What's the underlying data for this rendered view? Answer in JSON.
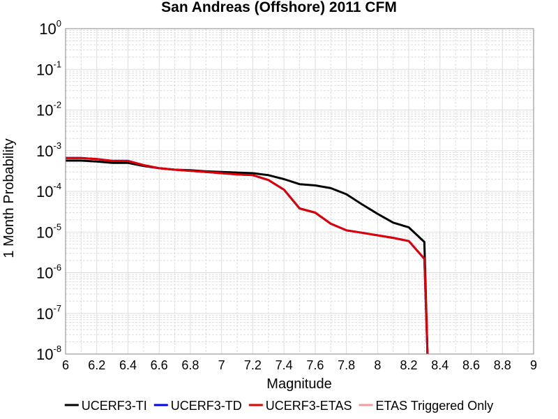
{
  "chart_data": {
    "type": "line",
    "title": "San Andreas (Offshore) 2011 CFM",
    "xlabel": "Magnitude",
    "ylabel": "1 Month Probability",
    "xlim": [
      6,
      9
    ],
    "ylim": [
      1e-08,
      1
    ],
    "yscale": "log",
    "grid": true,
    "legend_position": "bottom",
    "x_ticks": [
      "6",
      "6.2",
      "6.4",
      "6.6",
      "6.8",
      "7",
      "7.2",
      "7.4",
      "7.6",
      "7.8",
      "8",
      "8.2",
      "8.4",
      "8.6",
      "8.8",
      "9"
    ],
    "y_ticks": [
      {
        "base": "10",
        "exp": "0"
      },
      {
        "base": "10",
        "exp": "-1"
      },
      {
        "base": "10",
        "exp": "-2"
      },
      {
        "base": "10",
        "exp": "-3"
      },
      {
        "base": "10",
        "exp": "-4"
      },
      {
        "base": "10",
        "exp": "-5"
      },
      {
        "base": "10",
        "exp": "-6"
      },
      {
        "base": "10",
        "exp": "-7"
      },
      {
        "base": "10",
        "exp": "-8"
      }
    ],
    "series": [
      {
        "name": "UCERF3-TI",
        "color": "#000000",
        "x": [
          6.0,
          6.1,
          6.2,
          6.3,
          6.4,
          6.5,
          6.6,
          6.7,
          6.8,
          6.9,
          7.0,
          7.1,
          7.2,
          7.3,
          7.4,
          7.5,
          7.6,
          7.7,
          7.8,
          7.9,
          8.0,
          8.1,
          8.2,
          8.3,
          8.32
        ],
        "y": [
          0.00057,
          0.00057,
          0.00054,
          0.0005,
          0.0005,
          0.00042,
          0.00037,
          0.00034,
          0.00033,
          0.00031,
          0.0003,
          0.00029,
          0.00028,
          0.00025,
          0.0002,
          0.00015,
          0.00014,
          0.00012,
          8.5e-05,
          4.8e-05,
          2.8e-05,
          1.7e-05,
          1.3e-05,
          5.7e-06,
          1e-08
        ]
      },
      {
        "name": "UCERF3-TD",
        "color": "#0000ff",
        "x": [
          6.0,
          6.1,
          6.2,
          6.3,
          6.4,
          6.5,
          6.6,
          6.7,
          6.8,
          6.9,
          7.0,
          7.1,
          7.2,
          7.3,
          7.4,
          7.5,
          7.6,
          7.7,
          7.8,
          7.9,
          8.0,
          8.1,
          8.2,
          8.3,
          8.32
        ],
        "y": [
          0.00066,
          0.00066,
          0.00062,
          0.00056,
          0.00056,
          0.00044,
          0.00037,
          0.00034,
          0.00032,
          0.0003,
          0.00028,
          0.00026,
          0.00025,
          0.00019,
          0.00011,
          3.8e-05,
          3e-05,
          1.6e-05,
          1.1e-05,
          9.6e-06,
          8.3e-06,
          7.2e-06,
          6e-06,
          2.2e-06,
          1e-08
        ]
      },
      {
        "name": "UCERF3-ETAS",
        "color": "#e00000",
        "x": [
          6.0,
          6.1,
          6.2,
          6.3,
          6.4,
          6.5,
          6.6,
          6.7,
          6.8,
          6.9,
          7.0,
          7.1,
          7.2,
          7.3,
          7.4,
          7.5,
          7.6,
          7.7,
          7.8,
          7.9,
          8.0,
          8.1,
          8.2,
          8.3,
          8.32
        ],
        "y": [
          0.00066,
          0.00066,
          0.00062,
          0.00056,
          0.00056,
          0.00044,
          0.00037,
          0.00034,
          0.00032,
          0.0003,
          0.00028,
          0.00026,
          0.00025,
          0.00019,
          0.00011,
          3.8e-05,
          3e-05,
          1.6e-05,
          1.1e-05,
          9.6e-06,
          8.3e-06,
          7.2e-06,
          6e-06,
          2.2e-06,
          1e-08
        ]
      },
      {
        "name": "ETAS Triggered Only",
        "color": "#f49a9a",
        "x": [],
        "y": []
      }
    ]
  }
}
